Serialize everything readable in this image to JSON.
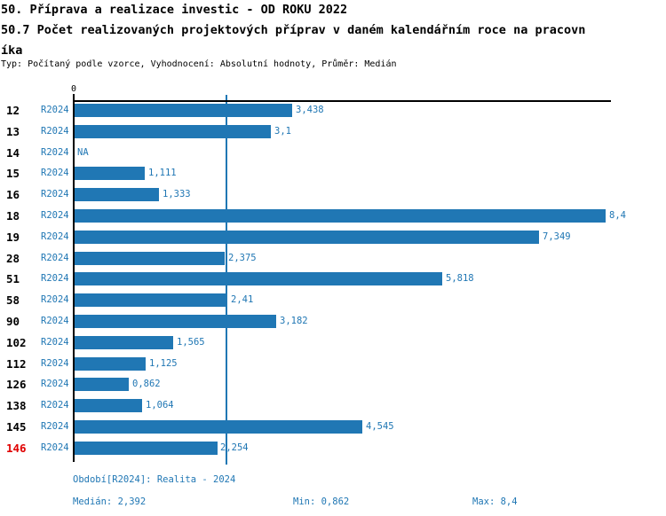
{
  "header": {
    "title_line1": "50. Příprava a realizace investic - OD ROKU 2022",
    "title_line2": "50.7 Počet realizovaných projektových příprav v daném kalendářním roce na pracovn",
    "title_line3": "íka",
    "subtitle": "Typ: Počítaný podle vzorce, Vyhodnocení: Absolutní hodnoty, Průměr: Medián"
  },
  "chart_data": {
    "type": "bar",
    "orientation": "horizontal",
    "title": "50.7 Počet realizovaných projektových příprav v daném kalendářním roce na pracovníka",
    "xlabel": "",
    "ylabel": "",
    "xlim": [
      0,
      8.49
    ],
    "axis": {
      "origin_label": "0"
    },
    "median_value": 2.392,
    "series_name": "R2024",
    "rows": [
      {
        "id": "12",
        "period": "R2024",
        "value": 3.438,
        "value_label": "3,438",
        "highlight": false
      },
      {
        "id": "13",
        "period": "R2024",
        "value": 3.1,
        "value_label": "3,1",
        "highlight": false
      },
      {
        "id": "14",
        "period": "R2024",
        "value": null,
        "value_label": "NA",
        "highlight": false
      },
      {
        "id": "15",
        "period": "R2024",
        "value": 1.111,
        "value_label": "1,111",
        "highlight": false
      },
      {
        "id": "16",
        "period": "R2024",
        "value": 1.333,
        "value_label": "1,333",
        "highlight": false
      },
      {
        "id": "18",
        "period": "R2024",
        "value": 8.4,
        "value_label": "8,4",
        "highlight": false
      },
      {
        "id": "19",
        "period": "R2024",
        "value": 7.349,
        "value_label": "7,349",
        "highlight": false
      },
      {
        "id": "28",
        "period": "R2024",
        "value": 2.375,
        "value_label": "2,375",
        "highlight": false
      },
      {
        "id": "51",
        "period": "R2024",
        "value": 5.818,
        "value_label": "5,818",
        "highlight": false
      },
      {
        "id": "58",
        "period": "R2024",
        "value": 2.41,
        "value_label": "2,41",
        "highlight": false
      },
      {
        "id": "90",
        "period": "R2024",
        "value": 3.182,
        "value_label": "3,182",
        "highlight": false
      },
      {
        "id": "102",
        "period": "R2024",
        "value": 1.565,
        "value_label": "1,565",
        "highlight": false
      },
      {
        "id": "112",
        "period": "R2024",
        "value": 1.125,
        "value_label": "1,125",
        "highlight": false
      },
      {
        "id": "126",
        "period": "R2024",
        "value": 0.862,
        "value_label": "0,862",
        "highlight": false
      },
      {
        "id": "138",
        "period": "R2024",
        "value": 1.064,
        "value_label": "1,064",
        "highlight": false
      },
      {
        "id": "145",
        "period": "R2024",
        "value": 4.545,
        "value_label": "4,545",
        "highlight": false
      },
      {
        "id": "146",
        "period": "R2024",
        "value": 2.254,
        "value_label": "2,254",
        "highlight": true
      }
    ]
  },
  "footer": {
    "period_info": "Období[R2024]: Realita - 2024",
    "median": "Medián: 2,392",
    "min": "Min: 0,862",
    "max": "Max: 8,4"
  },
  "colors": {
    "bar_blue": "#2077b4",
    "highlight_red": "#e00000",
    "axis_black": "#000000",
    "background": "#ffffff"
  }
}
